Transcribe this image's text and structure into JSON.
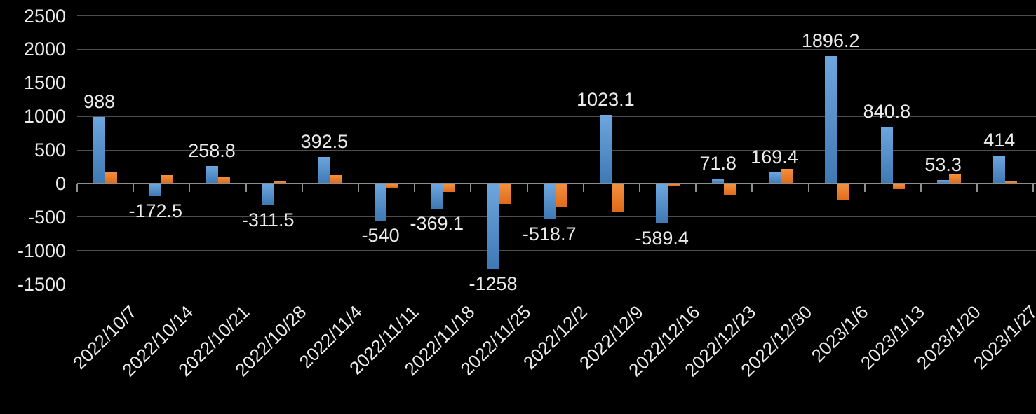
{
  "chart_data": {
    "type": "bar",
    "title": "",
    "xlabel": "",
    "ylabel": "",
    "categories": [
      "2022/10/7",
      "2022/10/14",
      "2022/10/21",
      "2022/10/28",
      "2022/11/4",
      "2022/11/11",
      "2022/11/18",
      "2022/11/25",
      "2022/12/2",
      "2022/12/9",
      "2022/12/16",
      "2022/12/23",
      "2022/12/30",
      "2023/1/6",
      "2023/1/13",
      "2023/1/20",
      "2023/1/27"
    ],
    "series": [
      {
        "name": "blue",
        "color_light": "#6EA6DE",
        "color_dark": "#3E79B4",
        "labels_visible": true,
        "values": [
          988,
          -172.5,
          258.8,
          -311.5,
          392.5,
          -540,
          -369.1,
          -1258,
          -518.7,
          1023.1,
          -589.4,
          71.8,
          169.4,
          1896.2,
          840.8,
          53.3,
          414
        ],
        "data_labels": [
          "988",
          "-172.5",
          "258.8",
          "-311.5",
          "392.5",
          "-540",
          "-369.1",
          "-1258",
          "-518.7",
          "1023.1",
          "-589.4",
          "71.8",
          "169.4",
          "1896.2",
          "840.8",
          "53.3",
          "414"
        ]
      },
      {
        "name": "orange",
        "color_light": "#F2913F",
        "color_dark": "#E06A1B",
        "labels_visible": false,
        "values": [
          175,
          130,
          100,
          30,
          130,
          -55,
          -120,
          -295,
          -345,
          -405,
          -20,
          -160,
          215,
          -235,
          -70,
          140,
          35
        ]
      }
    ],
    "ylim": [
      -1500,
      2500
    ],
    "ytick_step": 500,
    "ytick_labels": [
      "2500",
      "2000",
      "1500",
      "1000",
      "500",
      "0",
      "-500",
      "-1000",
      "-1500"
    ],
    "grid": true,
    "legend": false,
    "x_labels_rotation_deg": -45,
    "colors": {
      "background": "#000000",
      "grid": "#4D4D4D",
      "axis": "#8E8E8E",
      "text": "#EBEBEB"
    }
  }
}
